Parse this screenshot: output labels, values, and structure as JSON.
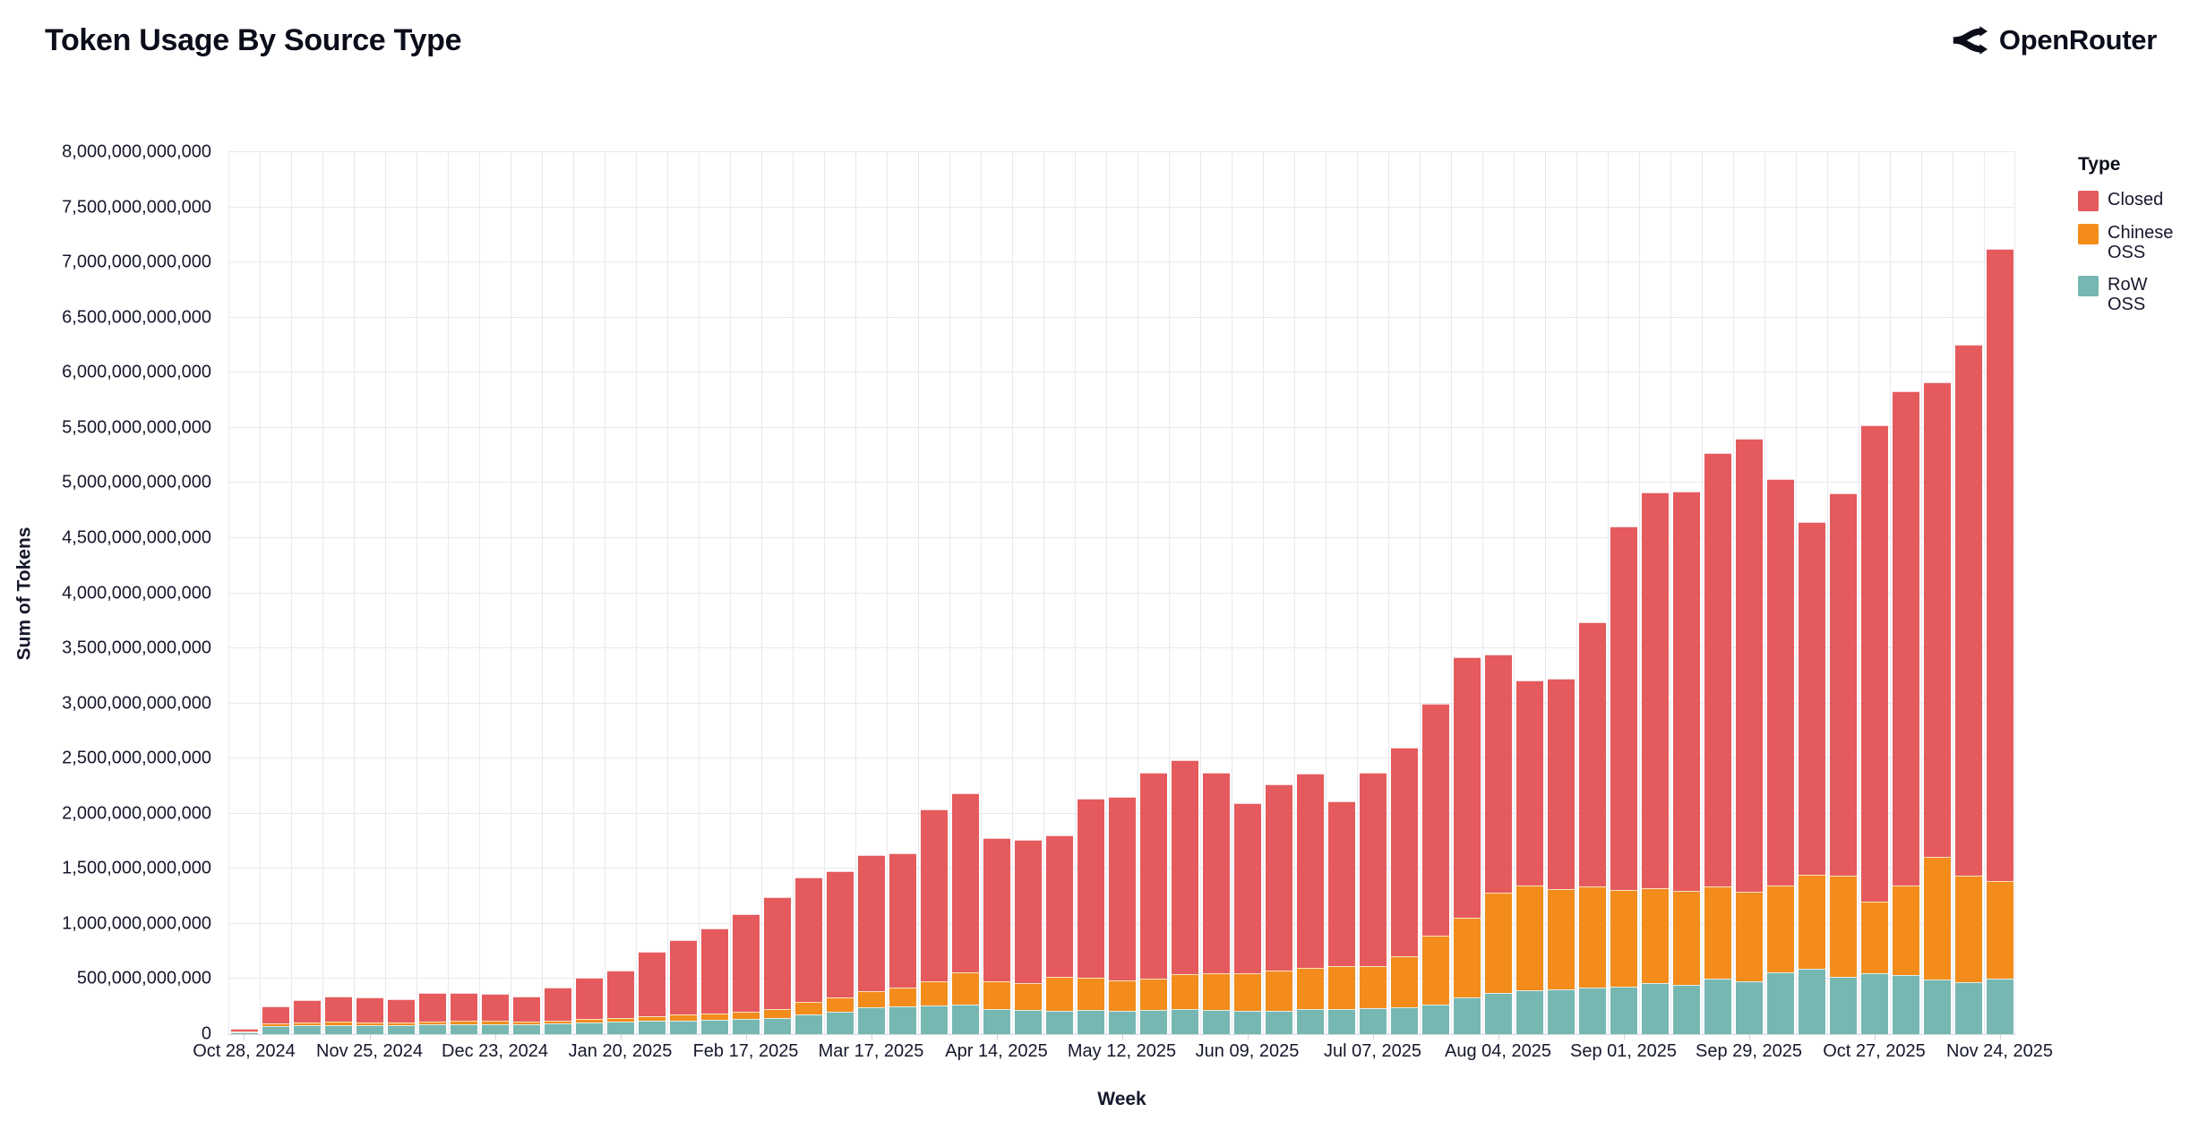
{
  "header": {
    "title": "Token Usage By Source Type",
    "brand": "OpenRouter"
  },
  "legend": {
    "title": "Type"
  },
  "colors": {
    "closed": "#e55a5c",
    "chinese_oss": "#f38c1b",
    "row_oss": "#76b7b2",
    "grid": "#e8e8f0",
    "text": "#16182c"
  },
  "axes": {
    "y_title": "Sum of Tokens",
    "x_title": "Week",
    "y_max_billions": 8000,
    "y_ticks": [
      "0",
      "500,000,000,000",
      "1,000,000,000,000",
      "1,500,000,000,000",
      "2,000,000,000,000",
      "2,500,000,000,000",
      "3,000,000,000,000",
      "3,500,000,000,000",
      "4,000,000,000,000",
      "4,500,000,000,000",
      "5,000,000,000,000",
      "5,500,000,000,000",
      "6,000,000,000,000",
      "6,500,000,000,000",
      "7,000,000,000,000",
      "7,500,000,000,000",
      "8,000,000,000,000"
    ],
    "x_tick_every": 4,
    "x_tick_labels": [
      "Oct 28, 2024",
      "Nov 25, 2024",
      "Dec 23, 2024",
      "Jan 20, 2025",
      "Feb 17, 2025",
      "Mar 17, 2025",
      "Apr 14, 2025",
      "May 12, 2025",
      "Jun 09, 2025",
      "Jul 07, 2025",
      "Aug 04, 2025",
      "Sep 01, 2025",
      "Sep 29, 2025",
      "Oct 27, 2025",
      "Nov 24, 2025"
    ]
  },
  "chart_data": {
    "type": "bar",
    "stacked": true,
    "title": "Token Usage By Source Type",
    "xlabel": "Week",
    "ylabel": "Sum of Tokens",
    "unit": "billions_of_tokens",
    "ylim_billions": [
      0,
      8000
    ],
    "grid": true,
    "legend_position": "top-right",
    "stack_order_bottom_to_top": [
      "RoW OSS",
      "Chinese OSS",
      "Closed"
    ],
    "weeks": [
      "Oct 28, 2024",
      "Nov 04, 2024",
      "Nov 11, 2024",
      "Nov 18, 2024",
      "Nov 25, 2024",
      "Dec 02, 2024",
      "Dec 09, 2024",
      "Dec 16, 2024",
      "Dec 23, 2024",
      "Dec 30, 2024",
      "Jan 06, 2025",
      "Jan 13, 2025",
      "Jan 20, 2025",
      "Jan 27, 2025",
      "Feb 03, 2025",
      "Feb 10, 2025",
      "Feb 17, 2025",
      "Feb 24, 2025",
      "Mar 03, 2025",
      "Mar 10, 2025",
      "Mar 17, 2025",
      "Mar 24, 2025",
      "Mar 31, 2025",
      "Apr 07, 2025",
      "Apr 14, 2025",
      "Apr 21, 2025",
      "Apr 28, 2025",
      "May 05, 2025",
      "May 12, 2025",
      "May 19, 2025",
      "May 26, 2025",
      "Jun 02, 2025",
      "Jun 09, 2025",
      "Jun 16, 2025",
      "Jun 23, 2025",
      "Jun 30, 2025",
      "Jul 07, 2025",
      "Jul 14, 2025",
      "Jul 21, 2025",
      "Jul 28, 2025",
      "Aug 04, 2025",
      "Aug 11, 2025",
      "Aug 18, 2025",
      "Aug 25, 2025",
      "Sep 01, 2025",
      "Sep 08, 2025",
      "Sep 15, 2025",
      "Sep 22, 2025",
      "Sep 29, 2025",
      "Oct 06, 2025",
      "Oct 13, 2025",
      "Oct 20, 2025",
      "Oct 27, 2025",
      "Nov 03, 2025",
      "Nov 10, 2025",
      "Nov 17, 2025",
      "Nov 24, 2025"
    ],
    "series": [
      {
        "name": "Closed",
        "color": "#e55a5c",
        "values_billions": [
          23,
          160,
          203,
          235,
          222,
          210,
          255,
          257,
          247,
          230,
          300,
          370,
          430,
          585,
          680,
          775,
          890,
          1010,
          1135,
          1146,
          1233,
          1220,
          1559,
          1628,
          1298,
          1296,
          1283,
          1626,
          1668,
          1873,
          1942,
          1820,
          1541,
          1689,
          1762,
          1493,
          1753,
          1892,
          2104,
          2360,
          2165,
          1860,
          1901,
          2395,
          3298,
          3590,
          3626,
          3928,
          4109,
          3682,
          3204,
          3468,
          4320,
          4485,
          4302,
          4815,
          5730
        ]
      },
      {
        "name": "Chinese OSS",
        "color": "#f38c1b",
        "values_billions": [
          4,
          20,
          22,
          25,
          23,
          23,
          27,
          28,
          28,
          27,
          30,
          35,
          40,
          45,
          50,
          55,
          65,
          80,
          115,
          130,
          150,
          165,
          220,
          295,
          250,
          245,
          305,
          290,
          270,
          280,
          320,
          335,
          345,
          363,
          378,
          389,
          385,
          464,
          627,
          726,
          905,
          950,
          910,
          920,
          880,
          855,
          850,
          840,
          810,
          790,
          855,
          920,
          646,
          807,
          1113,
          967,
          884
        ]
      },
      {
        "name": "RoW OSS",
        "color": "#76b7b2",
        "values_billions": [
          18,
          75,
          80,
          85,
          85,
          82,
          88,
          90,
          90,
          88,
          95,
          105,
          110,
          120,
          125,
          130,
          135,
          150,
          175,
          200,
          240,
          255,
          260,
          265,
          230,
          220,
          215,
          220,
          215,
          220,
          225,
          220,
          210,
          215,
          225,
          230,
          235,
          245,
          270,
          334,
          375,
          400,
          410,
          420,
          430,
          465,
          450,
          500,
          480,
          560,
          590,
          520,
          554,
          538,
          497,
          473,
          506
        ]
      }
    ]
  }
}
